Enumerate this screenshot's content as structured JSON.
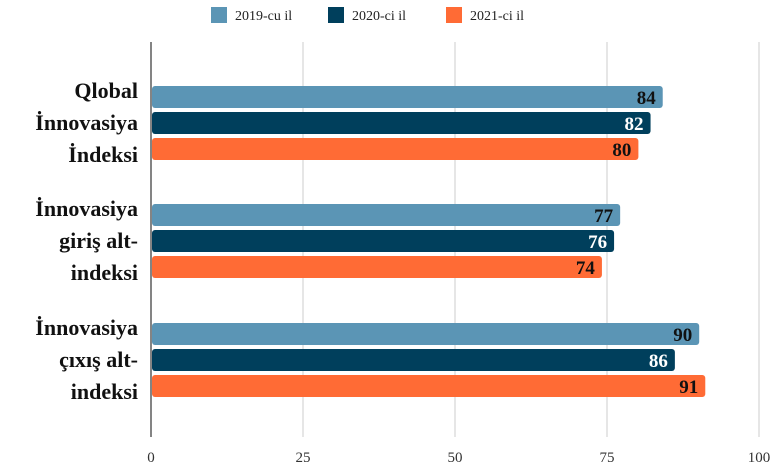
{
  "chart_data": {
    "type": "bar",
    "orientation": "horizontal",
    "categories": [
      [
        "Qlobal",
        "İnnovasiya",
        "İndeksi"
      ],
      [
        "İnnovasiya",
        "giriş alt-",
        "indeksi"
      ],
      [
        "İnnovasiya",
        "çıxış alt-",
        "indeksi"
      ]
    ],
    "series": [
      {
        "name": "2019-cu il",
        "color": "#5b95b5",
        "values": [
          84,
          77,
          90
        ]
      },
      {
        "name": "2020-ci il",
        "color": "#003f5c",
        "values": [
          82,
          76,
          86
        ]
      },
      {
        "name": "2021-ci il",
        "color": "#ff6b35",
        "values": [
          80,
          74,
          91
        ]
      }
    ],
    "xlim": [
      0,
      100
    ],
    "xticks": [
      0,
      25,
      50,
      75,
      100
    ],
    "grid": true,
    "legend": "top-center"
  }
}
